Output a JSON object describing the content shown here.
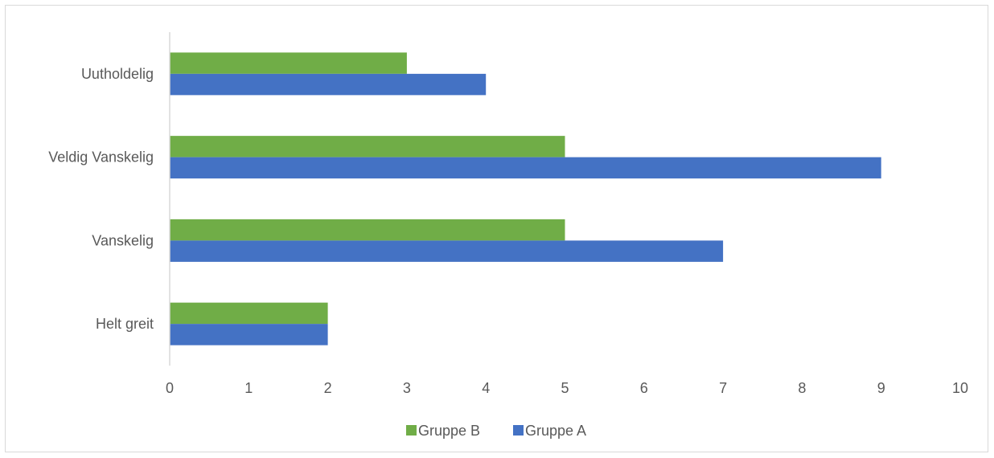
{
  "chart_data": {
    "type": "bar",
    "orientation": "horizontal",
    "categories": [
      "Helt greit",
      "Vanskelig",
      "Veldig Vanskelig",
      "Uutholdelig"
    ],
    "series": [
      {
        "name": "Gruppe A",
        "color": "#4472c4",
        "values": [
          2,
          7,
          9,
          4
        ]
      },
      {
        "name": "Gruppe B",
        "color": "#70ad47",
        "values": [
          2,
          5,
          5,
          3
        ]
      }
    ],
    "xlim": [
      0,
      10
    ],
    "xticks": [
      "0",
      "1",
      "2",
      "3",
      "4",
      "5",
      "6",
      "7",
      "8",
      "9",
      "10"
    ],
    "legend": {
      "position": "bottom",
      "order": [
        "Gruppe B",
        "Gruppe A"
      ]
    },
    "grid": false
  }
}
